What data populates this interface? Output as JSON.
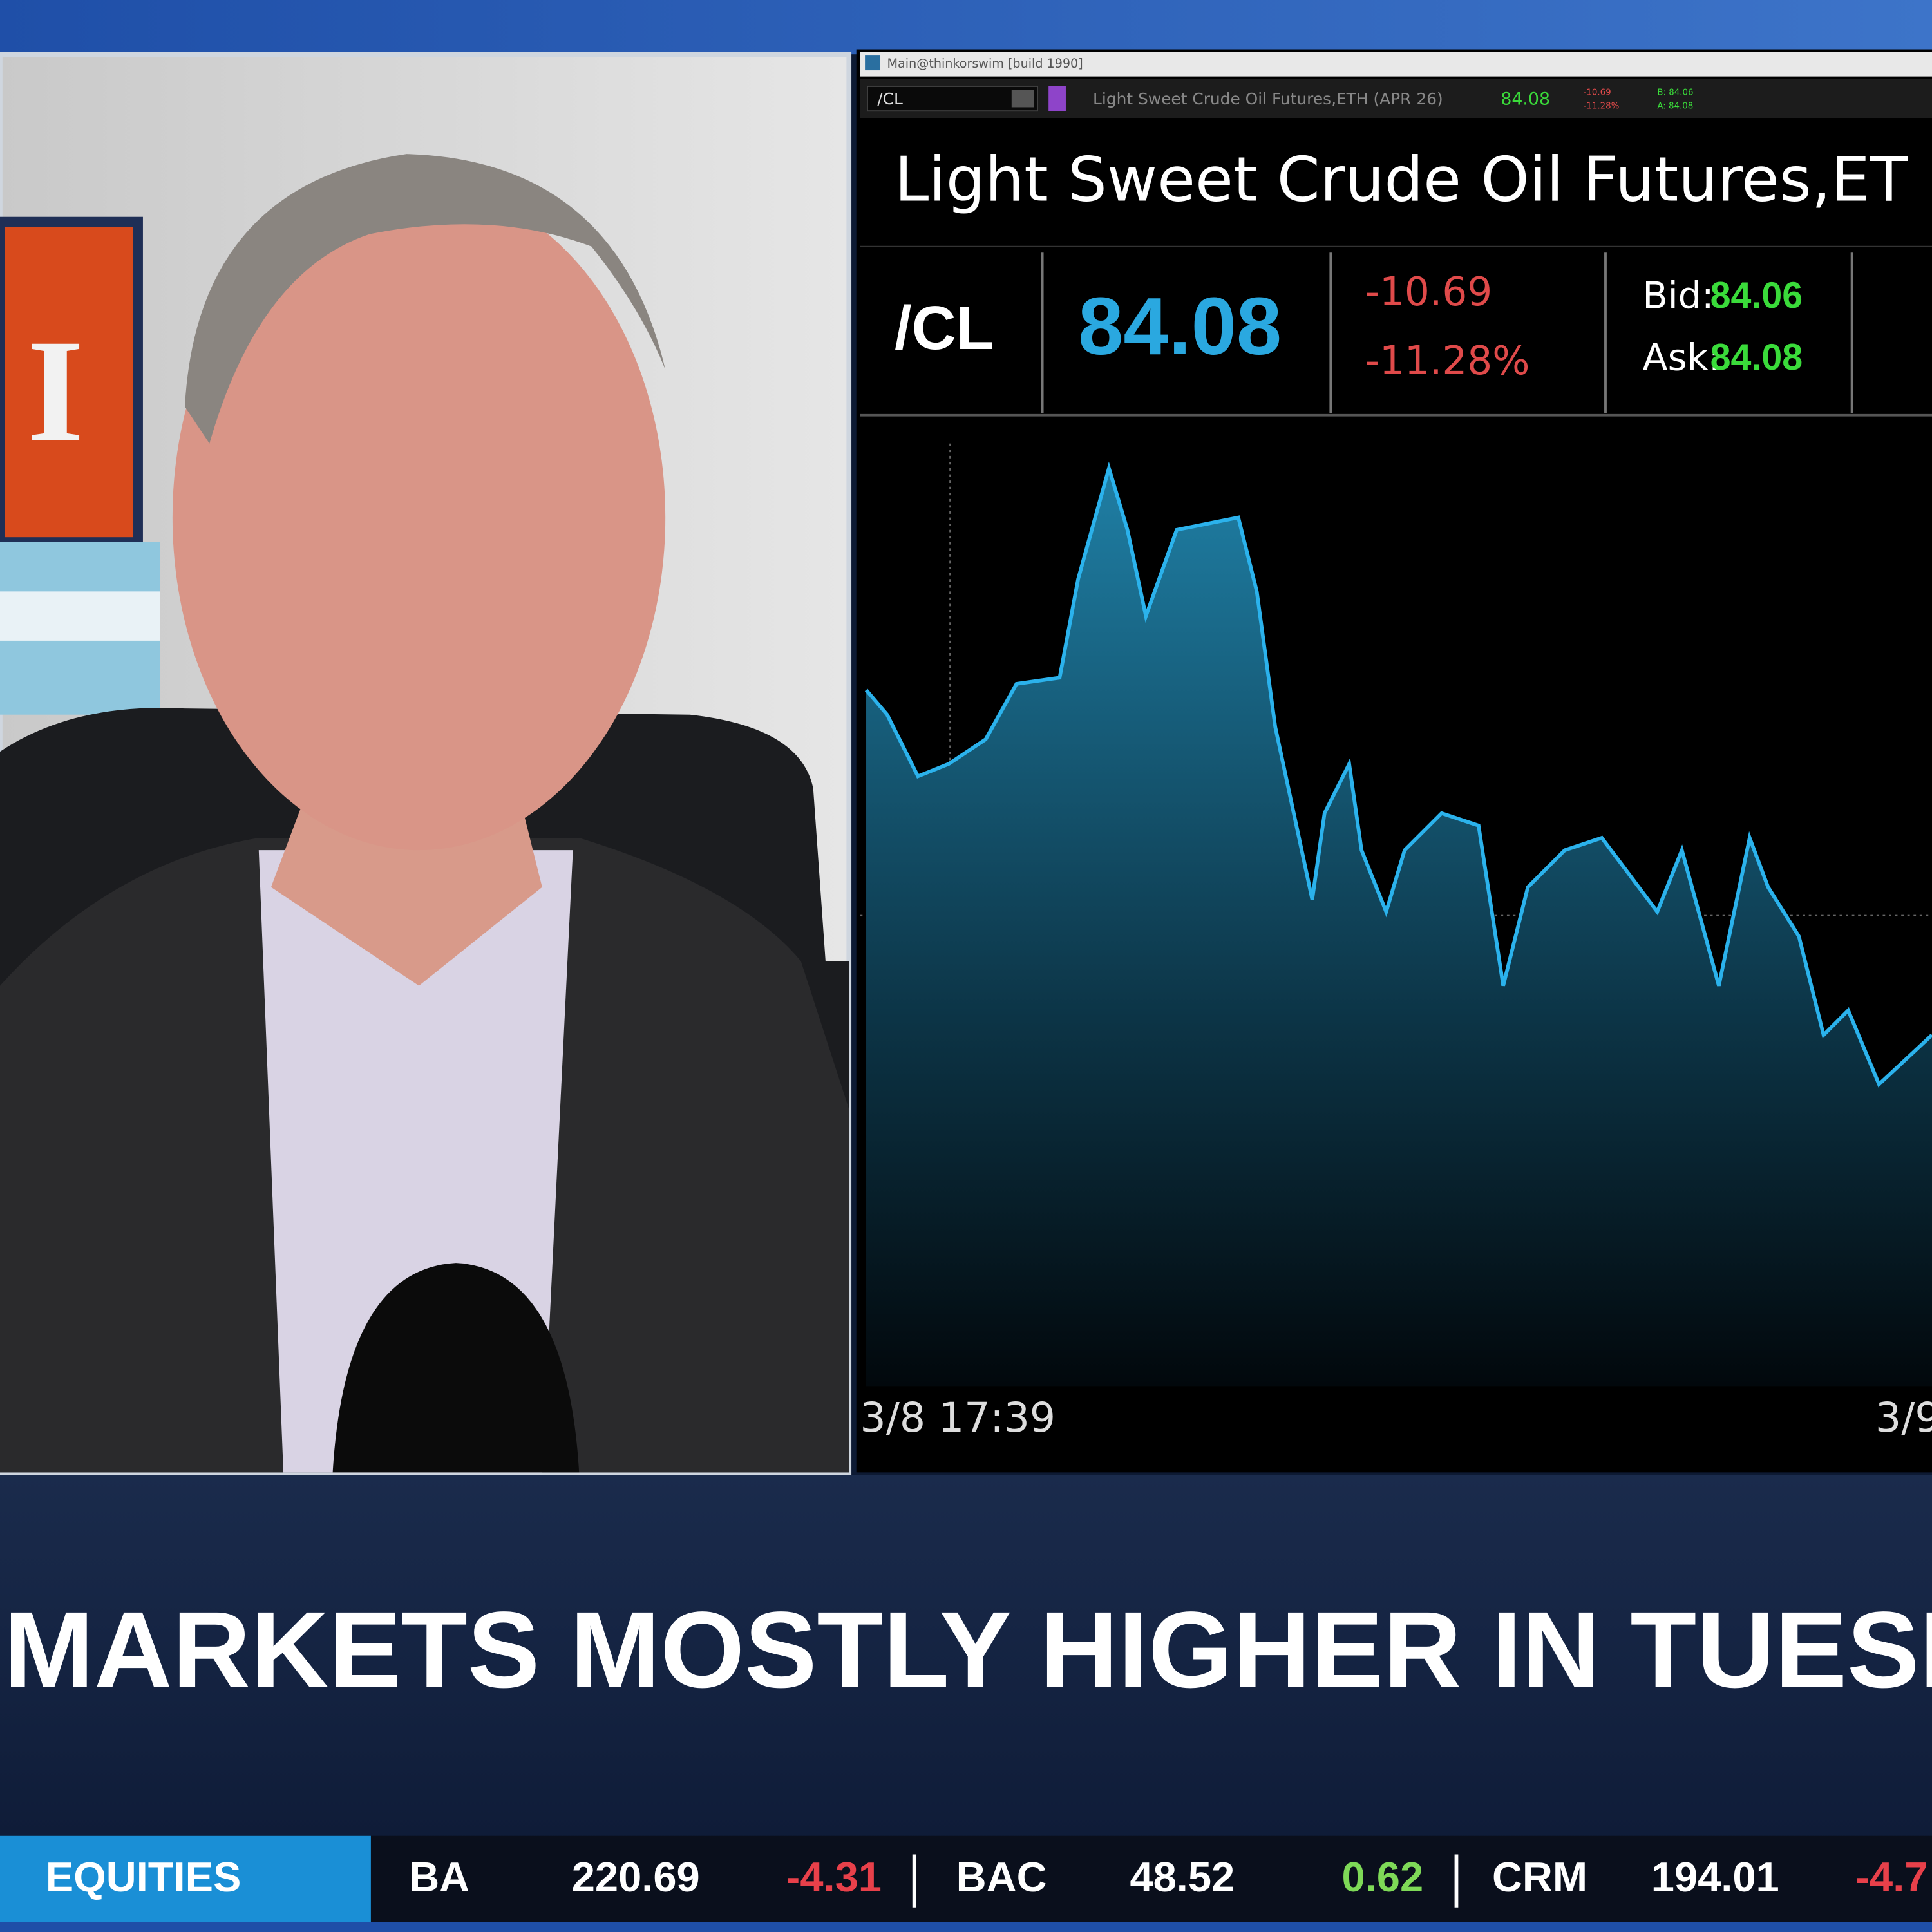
{
  "video": {
    "flag_letter": "I"
  },
  "window": {
    "title": "Main@thinkorswim [build 1990]",
    "toolbar": {
      "symbol": "/CL",
      "description": "Light Sweet Crude Oil Futures,ETH (APR 26)",
      "last": "84.08",
      "change": "-10.69",
      "change_pct": "-11.28%",
      "bid": "B: 84.06",
      "ask": "A: 84.08"
    },
    "header": {
      "title": "Light Sweet Crude Oil Futures,ET",
      "symbol": "/CL",
      "price": "84.08",
      "change": "-10.69",
      "change_pct": "-11.28%",
      "bid_label": "Bid:",
      "bid": "84.06",
      "ask_label": "Ask:",
      "ask": "84.08"
    },
    "chart": {
      "x_labels": [
        "3/8 17:39",
        "3/9"
      ]
    }
  },
  "banner": {
    "headline": "MARKETS MOSTLY HIGHER IN TUESDAY"
  },
  "ticker": {
    "section": "EQUITIES",
    "items": [
      {
        "symbol": "BA",
        "price": "220.69",
        "change": "-4.31"
      },
      {
        "symbol": "BAC",
        "price": "48.52",
        "change": "0.62"
      },
      {
        "symbol": "CRM",
        "price": "194.01",
        "change": "-4.7"
      }
    ]
  }
}
